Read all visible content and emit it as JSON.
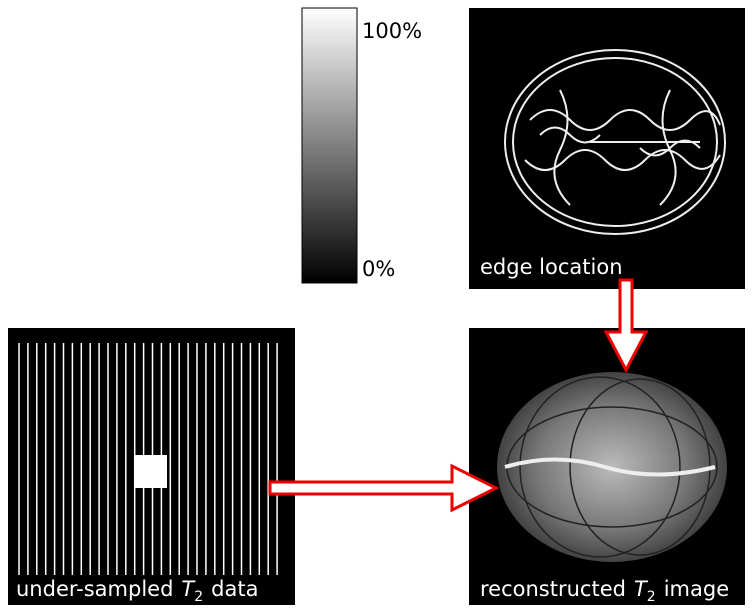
{
  "colorbar": {
    "max_label": "100%",
    "min_label": "0%"
  },
  "panels": [
    {
      "label": "edge location"
    },
    {
      "label": {
        "text": "under-sampled",
        "symbol": "T",
        "subscript": "2",
        "after": "data"
      }
    },
    {
      "label": {
        "text": "reconstructed",
        "symbol": "T",
        "subscript": "2",
        "after": "image"
      }
    }
  ]
}
